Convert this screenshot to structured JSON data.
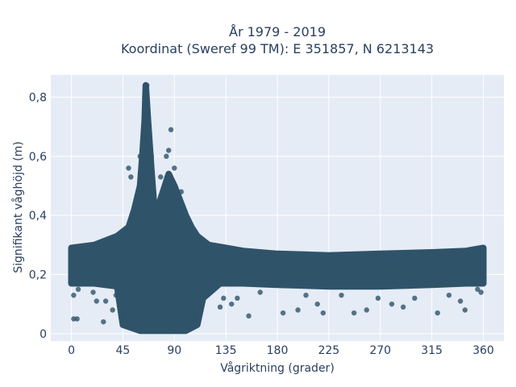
{
  "chart_data": {
    "type": "scatter",
    "title_line1": "År 1979 - 2019",
    "title_line2": "Koordinat (Sweref 99 TM): E 351857, N 6213143",
    "xlabel": "Vågriktning (grader)",
    "ylabel": "Signifikant våghöjd (m)",
    "xlim": [
      -18,
      378
    ],
    "ylim": [
      -0.025,
      0.875
    ],
    "xticks": [
      {
        "value": 0,
        "label": "0"
      },
      {
        "value": 45,
        "label": "45"
      },
      {
        "value": 90,
        "label": "90"
      },
      {
        "value": 135,
        "label": "135"
      },
      {
        "value": 180,
        "label": "180"
      },
      {
        "value": 225,
        "label": "225"
      },
      {
        "value": 270,
        "label": "270"
      },
      {
        "value": 315,
        "label": "315"
      },
      {
        "value": 360,
        "label": "360"
      }
    ],
    "yticks": [
      {
        "value": 0,
        "label": "0"
      },
      {
        "value": 0.2,
        "label": "0,2"
      },
      {
        "value": 0.4,
        "label": "0,4"
      },
      {
        "value": 0.6,
        "label": "0,6"
      },
      {
        "value": 0.8,
        "label": "0,8"
      }
    ],
    "grid": true,
    "marker_color": "#2f5369",
    "background_color": "#e5ecf6",
    "band_upper": [
      [
        0,
        0.29
      ],
      [
        20,
        0.3
      ],
      [
        40,
        0.33
      ],
      [
        50,
        0.36
      ],
      [
        55,
        0.42
      ],
      [
        60,
        0.5
      ],
      [
        62,
        0.6
      ],
      [
        64,
        0.72
      ],
      [
        65,
        0.84
      ],
      [
        67,
        0.72
      ],
      [
        70,
        0.55
      ],
      [
        72,
        0.45
      ],
      [
        75,
        0.42
      ],
      [
        80,
        0.48
      ],
      [
        85,
        0.54
      ],
      [
        90,
        0.5
      ],
      [
        95,
        0.45
      ],
      [
        100,
        0.4
      ],
      [
        105,
        0.36
      ],
      [
        110,
        0.33
      ],
      [
        120,
        0.3
      ],
      [
        135,
        0.29
      ],
      [
        150,
        0.28
      ],
      [
        180,
        0.27
      ],
      [
        225,
        0.265
      ],
      [
        270,
        0.27
      ],
      [
        315,
        0.275
      ],
      [
        345,
        0.28
      ],
      [
        360,
        0.29
      ]
    ],
    "band_lower": [
      [
        0,
        0.17
      ],
      [
        20,
        0.17
      ],
      [
        40,
        0.16
      ],
      [
        45,
        0.03
      ],
      [
        60,
        0.01
      ],
      [
        80,
        0.01
      ],
      [
        100,
        0.01
      ],
      [
        110,
        0.03
      ],
      [
        115,
        0.12
      ],
      [
        130,
        0.17
      ],
      [
        150,
        0.17
      ],
      [
        180,
        0.165
      ],
      [
        225,
        0.16
      ],
      [
        270,
        0.16
      ],
      [
        315,
        0.165
      ],
      [
        345,
        0.17
      ],
      [
        360,
        0.17
      ]
    ],
    "outliers": [
      {
        "x": 2,
        "y": 0.05
      },
      {
        "x": 5,
        "y": 0.05
      },
      {
        "x": 2,
        "y": 0.13
      },
      {
        "x": 6,
        "y": 0.15
      },
      {
        "x": 19,
        "y": 0.14
      },
      {
        "x": 22,
        "y": 0.11
      },
      {
        "x": 28,
        "y": 0.04
      },
      {
        "x": 30,
        "y": 0.11
      },
      {
        "x": 36,
        "y": 0.08
      },
      {
        "x": 39,
        "y": 0.13
      },
      {
        "x": 50,
        "y": 0.56
      },
      {
        "x": 52,
        "y": 0.53
      },
      {
        "x": 60,
        "y": 0.6
      },
      {
        "x": 63,
        "y": 0.66
      },
      {
        "x": 64,
        "y": 0.8
      },
      {
        "x": 65,
        "y": 0.82
      },
      {
        "x": 66,
        "y": 0.84
      },
      {
        "x": 70,
        "y": 0.6
      },
      {
        "x": 78,
        "y": 0.53
      },
      {
        "x": 83,
        "y": 0.6
      },
      {
        "x": 85,
        "y": 0.62
      },
      {
        "x": 87,
        "y": 0.69
      },
      {
        "x": 90,
        "y": 0.56
      },
      {
        "x": 96,
        "y": 0.48
      },
      {
        "x": 113,
        "y": 0.14
      },
      {
        "x": 120,
        "y": 0.16
      },
      {
        "x": 130,
        "y": 0.09
      },
      {
        "x": 133,
        "y": 0.12
      },
      {
        "x": 140,
        "y": 0.1
      },
      {
        "x": 145,
        "y": 0.12
      },
      {
        "x": 155,
        "y": 0.06
      },
      {
        "x": 165,
        "y": 0.14
      },
      {
        "x": 185,
        "y": 0.07
      },
      {
        "x": 198,
        "y": 0.08
      },
      {
        "x": 205,
        "y": 0.13
      },
      {
        "x": 215,
        "y": 0.1
      },
      {
        "x": 220,
        "y": 0.07
      },
      {
        "x": 236,
        "y": 0.13
      },
      {
        "x": 247,
        "y": 0.07
      },
      {
        "x": 258,
        "y": 0.08
      },
      {
        "x": 268,
        "y": 0.12
      },
      {
        "x": 280,
        "y": 0.1
      },
      {
        "x": 290,
        "y": 0.09
      },
      {
        "x": 300,
        "y": 0.12
      },
      {
        "x": 320,
        "y": 0.07
      },
      {
        "x": 330,
        "y": 0.13
      },
      {
        "x": 340,
        "y": 0.11
      },
      {
        "x": 344,
        "y": 0.08
      },
      {
        "x": 355,
        "y": 0.15
      },
      {
        "x": 358,
        "y": 0.14
      }
    ]
  }
}
